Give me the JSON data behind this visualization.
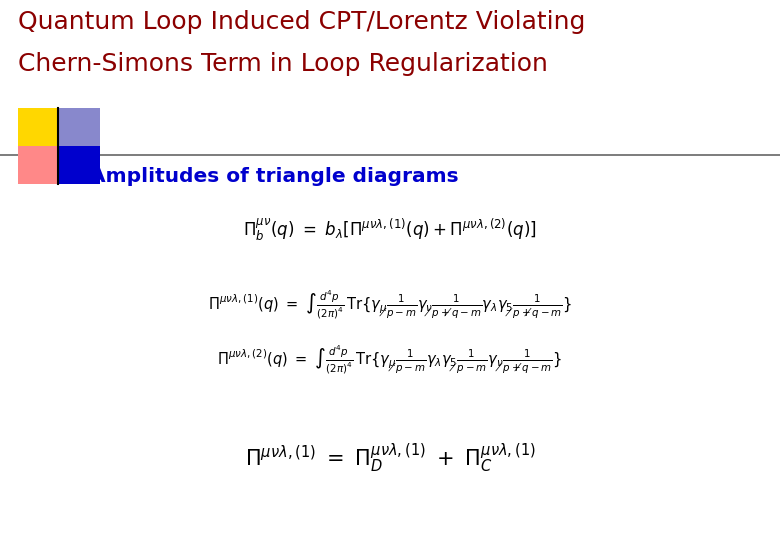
{
  "title_line1": "Quantum Loop Induced CPT/Lorentz Violating",
  "title_line2": "Chern-Simons Term in Loop Regularization",
  "title_color": "#8B0000",
  "bullet_color": "#0000CD",
  "bullet_text": "Amplitudes of triangle diagrams",
  "formula_color": "#000000",
  "bg_color": "#FFFFFF",
  "line_color": "#666666",
  "gold_color": "#FFD700",
  "pink_color": "#FF8888",
  "blue_color": "#0000CD",
  "bluegray_color": "#8888CC"
}
